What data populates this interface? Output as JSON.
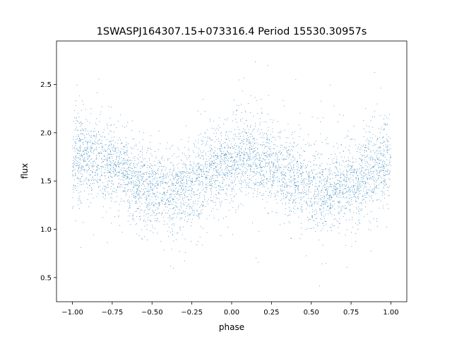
{
  "chart_data": {
    "type": "scatter",
    "title": "1SWASPJ164307.15+073316.4 Period 15530.30957s",
    "xlabel": "phase",
    "ylabel": "flux",
    "xlim": [
      -1.1,
      1.1
    ],
    "ylim": [
      0.25,
      2.95
    ],
    "xticks": [
      -1.0,
      -0.75,
      -0.5,
      -0.25,
      0.0,
      0.25,
      0.5,
      0.75,
      1.0
    ],
    "xtick_labels": [
      "−1.00",
      "−0.75",
      "−0.50",
      "−0.25",
      "0.00",
      "0.25",
      "0.50",
      "0.75",
      "1.00"
    ],
    "yticks": [
      0.5,
      1.0,
      1.5,
      2.0,
      2.5
    ],
    "ytick_labels": [
      "0.5",
      "1.0",
      "1.5",
      "2.0",
      "2.5"
    ],
    "grid": false,
    "point_color": "#1f77b4",
    "binned_mean_flux": {
      "phase": [
        -1.0,
        -0.875,
        -0.75,
        -0.625,
        -0.5,
        -0.375,
        -0.25,
        -0.125,
        0.0,
        0.125,
        0.25,
        0.375,
        0.5,
        0.625,
        0.75,
        0.875,
        1.0
      ],
      "flux": [
        1.72,
        1.75,
        1.68,
        1.54,
        1.42,
        1.39,
        1.46,
        1.6,
        1.72,
        1.75,
        1.68,
        1.54,
        1.42,
        1.39,
        1.46,
        1.6,
        1.72
      ]
    },
    "flux_scatter_std": 0.2
  }
}
